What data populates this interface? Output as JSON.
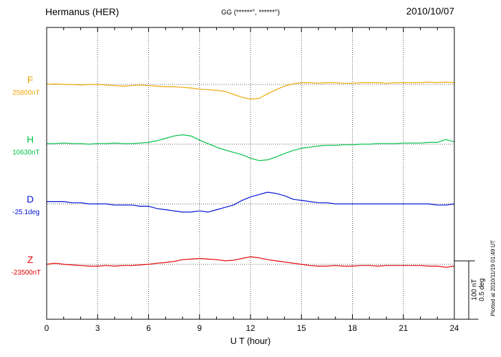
{
  "header": {
    "station": "Hermanus (HER)",
    "coords": "GG (******°, ******°)",
    "date": "2010/10/07"
  },
  "plotted_note": "Plotted at 2010/11/19 01:49 UT",
  "scale_bar": {
    "labels": [
      "100 nT",
      "0.5 deg"
    ],
    "nT": 100,
    "deg": 0.5
  },
  "x_axis": {
    "title": "U T (hour)",
    "min": 0,
    "max": 24,
    "tick_labels": [
      "0",
      "3",
      "6",
      "9",
      "12",
      "15",
      "18",
      "21",
      "24"
    ],
    "grid_hours": [
      3,
      6,
      9,
      12,
      15,
      18,
      21
    ],
    "minor_tick_step_hours": 1
  },
  "chart_data": {
    "type": "line",
    "title": "Hermanus (HER) magnetogram",
    "date": "2010/10/07",
    "xlabel": "U T (hour)",
    "x_range": [
      0,
      24
    ],
    "grid": "dotted vertical every 3h, dotted horizontal baseline per trace",
    "scale_reference": {
      "nT": 100,
      "deg": 0.5
    },
    "values_note": "values are deviations from each trace baseline, in the series unit",
    "x_hours": [
      0,
      0.5,
      1,
      1.5,
      2,
      2.5,
      3,
      3.5,
      4,
      4.5,
      5,
      5.5,
      6,
      6.5,
      7,
      7.5,
      8,
      8.5,
      9,
      9.5,
      10,
      10.5,
      11,
      11.5,
      12,
      12.5,
      13,
      13.5,
      14,
      14.5,
      15,
      15.5,
      16,
      16.5,
      17,
      17.5,
      18,
      18.5,
      19,
      19.5,
      20,
      20.5,
      21,
      21.5,
      22,
      22.5,
      23,
      23.5,
      24
    ],
    "series": [
      {
        "name": "F",
        "baseline_label": "25800nT",
        "baseline_value": 25800,
        "unit": "nT",
        "color": "#f0a500",
        "values": [
          0,
          1,
          0,
          0,
          -1,
          0,
          0,
          -1,
          -2,
          -3,
          -2,
          -1,
          -2,
          -3,
          -4,
          -4,
          -5,
          -6,
          -8,
          -9,
          -10,
          -12,
          -17,
          -22,
          -25,
          -24,
          -16,
          -9,
          -3,
          1,
          3,
          3,
          2,
          3,
          3,
          2,
          2,
          3,
          3,
          3,
          2,
          3,
          3,
          3,
          3,
          4,
          3,
          4,
          3
        ]
      },
      {
        "name": "H",
        "baseline_label": "10630nT",
        "baseline_value": 10630,
        "unit": "nT",
        "color": "#00c244",
        "values": [
          1,
          1,
          2,
          1,
          1,
          0,
          1,
          1,
          2,
          1,
          1,
          2,
          3,
          6,
          10,
          14,
          16,
          14,
          7,
          1,
          -5,
          -10,
          -14,
          -18,
          -24,
          -28,
          -27,
          -22,
          -16,
          -11,
          -7,
          -5,
          -3,
          -2,
          -2,
          -1,
          -1,
          0,
          0,
          1,
          1,
          1,
          2,
          2,
          2,
          3,
          3,
          8,
          4
        ]
      },
      {
        "name": "D",
        "baseline_label": "-25.1deg",
        "baseline_value": -25.1,
        "unit": "deg",
        "color": "#0010d7",
        "values": [
          0.02,
          0.02,
          0.02,
          0.01,
          0.01,
          0,
          0,
          0,
          -0.01,
          -0.01,
          -0.01,
          -0.02,
          -0.02,
          -0.04,
          -0.05,
          -0.06,
          -0.07,
          -0.07,
          -0.06,
          -0.07,
          -0.05,
          -0.03,
          -0.01,
          0.03,
          0.06,
          0.08,
          0.1,
          0.09,
          0.07,
          0.04,
          0.03,
          0.02,
          0.01,
          0.01,
          0,
          0,
          0,
          0,
          0,
          0,
          0,
          0,
          0,
          0,
          0,
          0,
          -0.01,
          -0.01,
          0
        ]
      },
      {
        "name": "Z",
        "baseline_label": "-23500nT",
        "baseline_value": -23500,
        "unit": "nT",
        "color": "#e60000",
        "values": [
          0,
          2,
          0,
          -1,
          -2,
          -3,
          -3,
          -2,
          -3,
          -2,
          -2,
          -1,
          0,
          2,
          3,
          5,
          8,
          9,
          10,
          9,
          8,
          6,
          7,
          10,
          13,
          11,
          8,
          6,
          4,
          2,
          0,
          -2,
          -3,
          -3,
          -2,
          -3,
          -3,
          -2,
          -2,
          -3,
          -2,
          -2,
          -2,
          -2,
          -2,
          -3,
          -3,
          -5,
          -3
        ]
      }
    ]
  }
}
